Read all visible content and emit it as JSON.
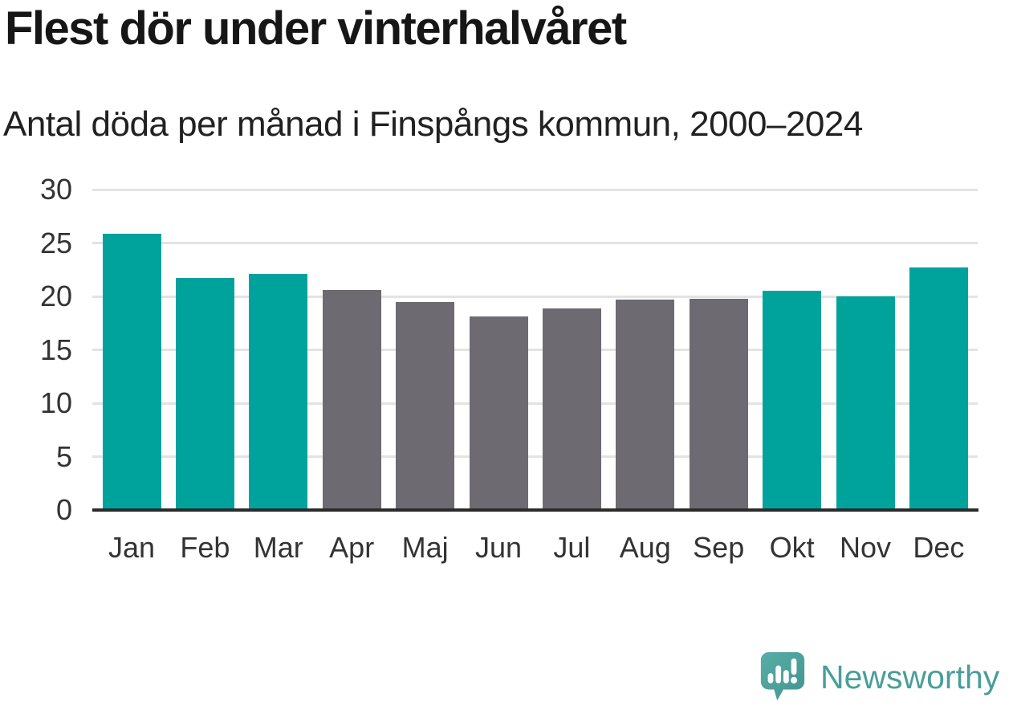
{
  "header": {
    "title": "Flest dör under vinterhalvåret",
    "subtitle": "Antal döda per månad i Finspångs kommun, 2000–2024"
  },
  "chart_data": {
    "type": "bar",
    "title": "Flest dör under vinterhalvåret",
    "subtitle": "Antal döda per månad i Finspångs kommun, 2000–2024",
    "categories": [
      "Jan",
      "Feb",
      "Mar",
      "Apr",
      "Maj",
      "Jun",
      "Jul",
      "Aug",
      "Sep",
      "Okt",
      "Nov",
      "Dec"
    ],
    "values": [
      25.9,
      21.7,
      22.1,
      20.6,
      19.5,
      18.1,
      18.9,
      19.7,
      19.8,
      20.5,
      20.0,
      22.7
    ],
    "bar_colors": [
      "#00a39c",
      "#00a39c",
      "#00a39c",
      "#6d6a71",
      "#6d6a71",
      "#6d6a71",
      "#6d6a71",
      "#6d6a71",
      "#6d6a71",
      "#00a39c",
      "#00a39c",
      "#00a39c"
    ],
    "series_note_winter_color": "#00a39c",
    "series_note_summer_color": "#6d6a71",
    "xlabel": "",
    "ylabel": "",
    "ylim": [
      0,
      30
    ],
    "yticks": [
      0,
      5,
      10,
      15,
      20,
      25,
      30
    ],
    "grid": true,
    "legend": "none",
    "gridline_color": "#e3e3e3",
    "axis_color": "#2b2b2b"
  },
  "footer": {
    "brand": "Newsworthy",
    "brand_color": "#4a9e99",
    "logo_icon": "newsworthy-speech-bubble-barchart-icon"
  }
}
